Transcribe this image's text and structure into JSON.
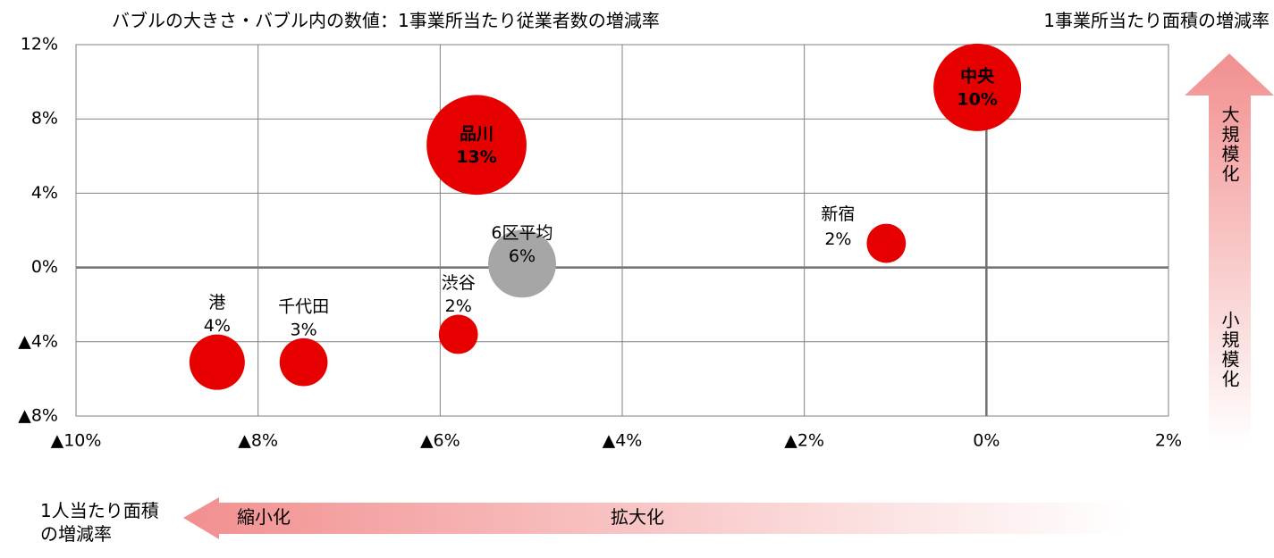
{
  "chart_data": {
    "type": "scatter",
    "title": "バブルの大きさ・バブル内の数値：1事業所当たり従業者数の増減率",
    "y_label": "1事業所当たり面積の増減率",
    "x_label": [
      "1人当たり面積",
      "の増減率"
    ],
    "y_arrow_labels": [
      "大規模化",
      "小規模化"
    ],
    "x_arrow_labels": [
      "縮小化",
      "拡大化"
    ],
    "xlim": [
      -10,
      2
    ],
    "xticks": [
      {
        "value": -10,
        "label": "▲10%"
      },
      {
        "value": -8,
        "label": "▲8%"
      },
      {
        "value": -6,
        "label": "▲6%"
      },
      {
        "value": -4,
        "label": "▲4%"
      },
      {
        "value": -2,
        "label": "▲2%"
      },
      {
        "value": 0,
        "label": "0%"
      },
      {
        "value": 2,
        "label": "2%"
      }
    ],
    "ylim": [
      -8,
      12
    ],
    "yticks": [
      {
        "value": -8,
        "label": "▲8%"
      },
      {
        "value": -4,
        "label": "▲4%"
      },
      {
        "value": 0,
        "label": "0%"
      },
      {
        "value": 4,
        "label": "4%"
      },
      {
        "value": 8,
        "label": "8%"
      },
      {
        "value": 12,
        "label": "12%"
      }
    ],
    "grid": true,
    "points": [
      {
        "name": "中央",
        "x": -0.1,
        "y": 9.7,
        "size": 10,
        "size_label": "10%",
        "color": "#e60000"
      },
      {
        "name": "品川",
        "x": -5.6,
        "y": 6.6,
        "size": 13,
        "size_label": "13%",
        "color": "#e60000"
      },
      {
        "name": "6区平均",
        "x": -5.1,
        "y": 0.2,
        "size": 6,
        "size_label": "6%",
        "color": "#a6a6a6"
      },
      {
        "name": "新宿",
        "x": -1.1,
        "y": 1.3,
        "size": 2,
        "size_label": "2%",
        "color": "#e60000"
      },
      {
        "name": "渋谷",
        "x": -5.8,
        "y": -3.6,
        "size": 2,
        "size_label": "2%",
        "color": "#e60000"
      },
      {
        "name": "千代田",
        "x": -7.5,
        "y": -5.1,
        "size": 3,
        "size_label": "3%",
        "color": "#e60000"
      },
      {
        "name": "港",
        "x": -8.45,
        "y": -5.1,
        "size": 4,
        "size_label": "4%",
        "color": "#e60000"
      }
    ]
  }
}
